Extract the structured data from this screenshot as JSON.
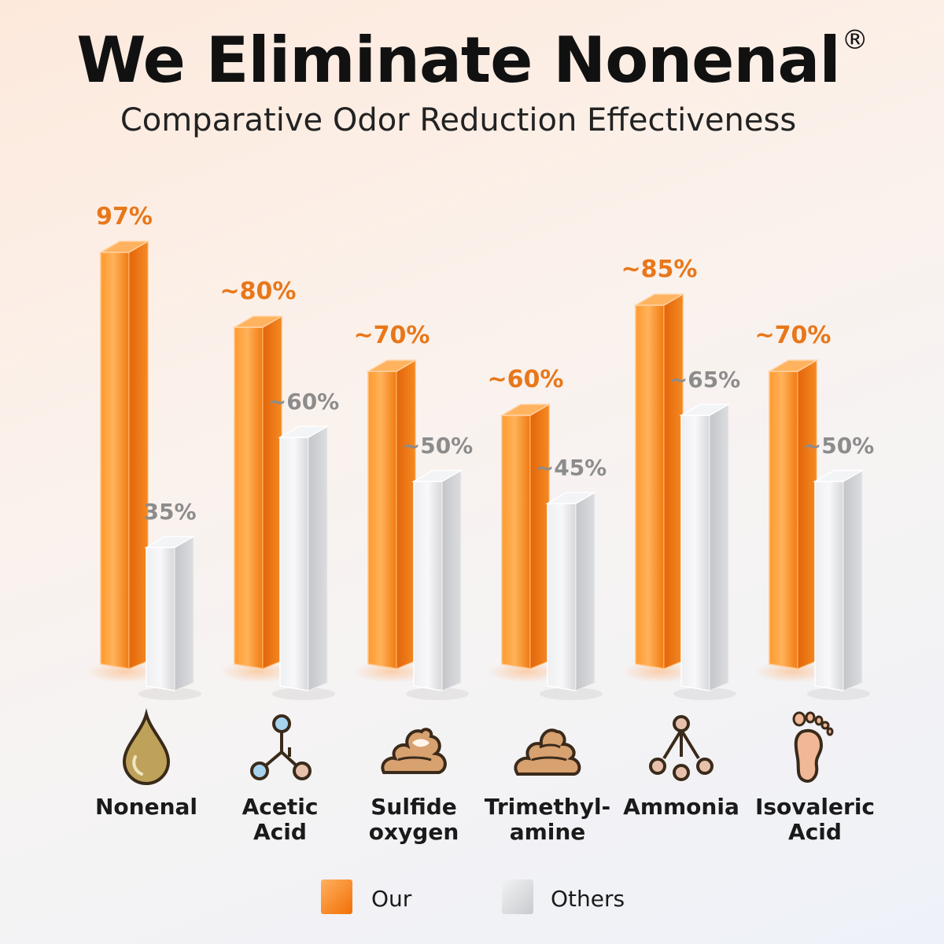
{
  "title": "We Eliminate Nonenal",
  "title_mark": "®",
  "subtitle": "Comparative Odor Reduction Effectiveness",
  "colors": {
    "our": "#f7861f",
    "others": "#d9dadd",
    "our_label": "#e8771a",
    "others_label": "#8c8c8c"
  },
  "chart_data": {
    "type": "bar",
    "title": "We Eliminate Nonenal®",
    "subtitle": "Comparative Odor Reduction Effectiveness",
    "categories": [
      "Nonenal",
      "Acetic Acid",
      "Sulfide oxygen",
      "Trimethyl-amine",
      "Ammonia",
      "Isovaleric Acid"
    ],
    "series": [
      {
        "name": "Our",
        "values": [
          97,
          80,
          70,
          60,
          85,
          70
        ],
        "labels": [
          "97%",
          "~80%",
          "~70%",
          "~60%",
          "~85%",
          "~70%"
        ]
      },
      {
        "name": "Others",
        "values": [
          35,
          60,
          50,
          45,
          65,
          50
        ],
        "labels": [
          "35%",
          "~60%",
          "~50%",
          "~45%",
          "~65%",
          "~50%"
        ]
      }
    ],
    "ylim": [
      0,
      100
    ],
    "grid": false,
    "legend": "bottom-center"
  },
  "categories_display": [
    {
      "label": "Nonenal",
      "icon": "droplet-icon"
    },
    {
      "label": "Acetic\nAcid",
      "icon": "molecule-icon"
    },
    {
      "label": "Sulfide\noxygen",
      "icon": "swirl-pile-icon"
    },
    {
      "label": "Trimethyl-\namine",
      "icon": "pile-icon"
    },
    {
      "label": "Ammonia",
      "icon": "ammonia-molecule-icon"
    },
    {
      "label": "Isovaleric\nAcid",
      "icon": "footprint-icon"
    }
  ],
  "legend": {
    "our": "Our",
    "others": "Others"
  }
}
